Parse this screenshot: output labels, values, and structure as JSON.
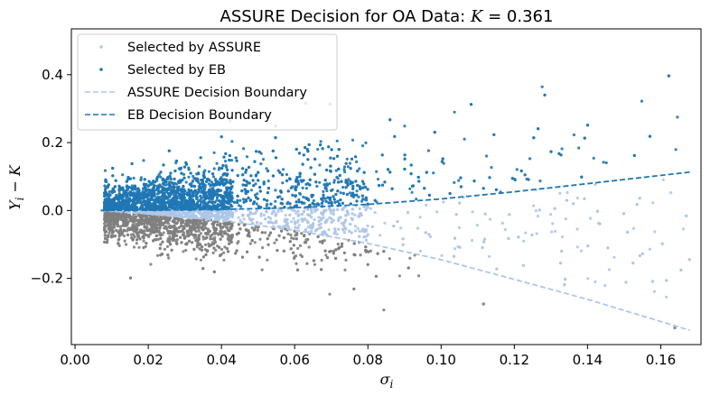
{
  "chart_data": {
    "type": "scatter",
    "title": "ASSURE Decision for OA Data: K = 0.361",
    "xlabel": "σi",
    "ylabel": "Yi − K",
    "xlim": [
      -0.001,
      0.171
    ],
    "ylim": [
      -0.395,
      0.535
    ],
    "xticks": [
      0.0,
      0.02,
      0.04,
      0.06,
      0.08,
      0.1,
      0.12,
      0.14,
      0.16
    ],
    "xtick_labels": [
      "0.00",
      "0.02",
      "0.04",
      "0.06",
      "0.08",
      "0.10",
      "0.12",
      "0.14",
      "0.16"
    ],
    "yticks": [
      -0.2,
      0.0,
      0.2,
      0.4
    ],
    "ytick_labels": [
      "−0.2",
      "0.0",
      "0.2",
      "0.4"
    ],
    "grid": false,
    "legend_position": "top-left",
    "series": [
      {
        "name": "Selected by ASSURE",
        "kind": "points",
        "color": "#aec7e8"
      },
      {
        "name": "Selected by EB",
        "kind": "points",
        "color": "#1f77b4"
      },
      {
        "name": "ASSURE Decision Boundary",
        "kind": "dashed-line",
        "color": "#aec7e8",
        "x": [
          0.007,
          0.02,
          0.04,
          0.06,
          0.08,
          0.1,
          0.12,
          0.14,
          0.168
        ],
        "y": [
          0.0,
          -0.01,
          -0.03,
          -0.058,
          -0.097,
          -0.145,
          -0.203,
          -0.262,
          -0.353
        ]
      },
      {
        "name": "EB Decision Boundary",
        "kind": "dashed-line",
        "color": "#1f77b4",
        "x": [
          0.007,
          0.02,
          0.04,
          0.06,
          0.08,
          0.1,
          0.12,
          0.14,
          0.168
        ],
        "y": [
          0.0,
          0.001,
          0.003,
          0.008,
          0.018,
          0.034,
          0.055,
          0.079,
          0.113
        ]
      },
      {
        "name": "",
        "kind": "points",
        "color": "#7f7f7f"
      }
    ]
  }
}
